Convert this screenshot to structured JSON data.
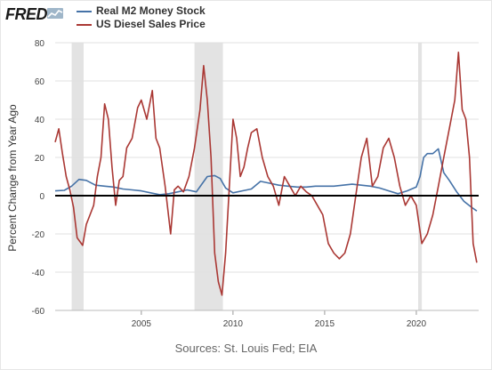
{
  "header": {
    "logo_text": "FRED",
    "logo_icon": "line-chart-icon"
  },
  "colors": {
    "m2": "#4572a7",
    "diesel": "#aa3834",
    "recession": "#e3e3e3",
    "zero_line": "#000000",
    "grid": "#e0e0e0"
  },
  "source": "Sources: St. Louis Fed; EIA",
  "chart_data": {
    "type": "line",
    "title": "",
    "xlabel": "",
    "ylabel": "Percent Change from Year Ago",
    "xlim": [
      2000.3,
      2023.4
    ],
    "ylim": [
      -60,
      80
    ],
    "yticks": [
      -60,
      -40,
      -20,
      0,
      20,
      40,
      60,
      80
    ],
    "xticks": [
      2005,
      2010,
      2015,
      2020
    ],
    "grid": true,
    "legend_position": "top-left",
    "recessions": [
      [
        2001.2,
        2001.85
      ],
      [
        2007.9,
        2009.45
      ],
      [
        2020.1,
        2020.3
      ]
    ],
    "series": [
      {
        "name": "Real M2 Money Stock",
        "x": [
          2000.3,
          2000.8,
          2001.2,
          2001.6,
          2002.0,
          2002.5,
          2003.0,
          2003.5,
          2004.0,
          2004.5,
          2005.0,
          2005.5,
          2006.0,
          2006.5,
          2007.0,
          2007.5,
          2008.0,
          2008.3,
          2008.6,
          2009.0,
          2009.3,
          2009.6,
          2010.0,
          2010.5,
          2011.0,
          2011.5,
          2012.0,
          2012.5,
          2013.0,
          2013.5,
          2014.0,
          2014.5,
          2015.0,
          2015.5,
          2016.0,
          2016.5,
          2017.0,
          2017.5,
          2018.0,
          2018.5,
          2019.0,
          2019.5,
          2020.0,
          2020.2,
          2020.4,
          2020.6,
          2020.9,
          2021.2,
          2021.5,
          2021.8,
          2022.2,
          2022.6,
          2023.0,
          2023.3
        ],
        "y": [
          2.5,
          2.8,
          5.0,
          8.5,
          8.0,
          5.5,
          5.0,
          4.5,
          3.5,
          3.0,
          2.5,
          1.5,
          0.5,
          1.0,
          2.0,
          3.0,
          2.0,
          6.0,
          10.0,
          10.5,
          9.0,
          4.0,
          1.5,
          2.5,
          3.5,
          7.5,
          6.5,
          5.5,
          5.0,
          4.5,
          4.5,
          5.0,
          5.0,
          5.0,
          5.5,
          6.0,
          5.5,
          5.0,
          4.0,
          2.5,
          1.0,
          2.5,
          4.5,
          10.0,
          20.0,
          22.0,
          22.0,
          24.5,
          12.0,
          8.0,
          2.0,
          -3.0,
          -6.0,
          -8.0
        ]
      },
      {
        "name": "US Diesel Sales Price",
        "x": [
          2000.3,
          2000.5,
          2000.7,
          2000.9,
          2001.1,
          2001.3,
          2001.5,
          2001.8,
          2002.0,
          2002.2,
          2002.4,
          2002.6,
          2002.8,
          2003.0,
          2003.2,
          2003.4,
          2003.6,
          2003.8,
          2004.0,
          2004.2,
          2004.5,
          2004.8,
          2005.0,
          2005.3,
          2005.6,
          2005.8,
          2006.0,
          2006.3,
          2006.6,
          2006.8,
          2007.0,
          2007.3,
          2007.6,
          2007.9,
          2008.2,
          2008.4,
          2008.6,
          2008.8,
          2009.0,
          2009.2,
          2009.4,
          2009.6,
          2009.8,
          2010.0,
          2010.2,
          2010.4,
          2010.6,
          2010.8,
          2011.0,
          2011.3,
          2011.6,
          2011.9,
          2012.2,
          2012.5,
          2012.8,
          2013.1,
          2013.4,
          2013.7,
          2014.0,
          2014.3,
          2014.6,
          2014.9,
          2015.2,
          2015.5,
          2015.8,
          2016.1,
          2016.4,
          2016.7,
          2017.0,
          2017.3,
          2017.6,
          2017.9,
          2018.2,
          2018.5,
          2018.8,
          2019.1,
          2019.4,
          2019.7,
          2020.0,
          2020.3,
          2020.6,
          2020.9,
          2021.2,
          2021.5,
          2021.8,
          2022.1,
          2022.3,
          2022.5,
          2022.7,
          2022.9,
          2023.1,
          2023.3
        ],
        "y": [
          28,
          35,
          22,
          10,
          3,
          -6,
          -22,
          -26,
          -15,
          -10,
          -5,
          10,
          20,
          48,
          40,
          15,
          -5,
          8,
          10,
          25,
          30,
          46,
          50,
          40,
          55,
          30,
          25,
          5,
          -20,
          3,
          5,
          2,
          10,
          25,
          45,
          68,
          50,
          20,
          -30,
          -45,
          -52,
          -30,
          5,
          40,
          30,
          10,
          15,
          25,
          33,
          35,
          20,
          10,
          5,
          -5,
          10,
          5,
          0,
          5,
          2,
          0,
          -5,
          -10,
          -25,
          -30,
          -33,
          -30,
          -20,
          0,
          20,
          30,
          5,
          10,
          25,
          30,
          20,
          5,
          -5,
          0,
          -5,
          -25,
          -20,
          -10,
          5,
          20,
          35,
          50,
          75,
          45,
          40,
          20,
          -25,
          -35
        ]
      }
    ]
  }
}
